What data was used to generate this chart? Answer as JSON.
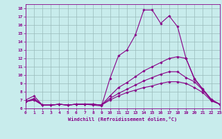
{
  "xlabel": "Windchill (Refroidissement éolien,°C)",
  "bg_color": "#c8ecec",
  "line_color": "#880088",
  "grid_color": "#99bbbb",
  "xlim": [
    0,
    23
  ],
  "ylim": [
    6,
    18.5
  ],
  "xticks": [
    0,
    1,
    2,
    3,
    4,
    5,
    6,
    7,
    8,
    9,
    10,
    11,
    12,
    13,
    14,
    15,
    16,
    17,
    18,
    19,
    20,
    21,
    22,
    23
  ],
  "yticks": [
    6,
    7,
    8,
    9,
    10,
    11,
    12,
    13,
    14,
    15,
    16,
    17,
    18
  ],
  "lines": [
    [
      7.0,
      7.5,
      6.4,
      6.4,
      6.5,
      6.4,
      6.5,
      6.5,
      6.4,
      6.3,
      9.6,
      12.3,
      13.0,
      14.8,
      17.8,
      17.8,
      16.2,
      17.1,
      15.8,
      12.0,
      9.6,
      8.3,
      7.0,
      6.5
    ],
    [
      6.8,
      7.1,
      6.4,
      6.4,
      6.5,
      6.4,
      6.5,
      6.5,
      6.5,
      6.4,
      7.5,
      8.5,
      9.1,
      9.8,
      10.5,
      11.0,
      11.5,
      12.0,
      12.2,
      12.0,
      9.5,
      8.3,
      7.1,
      6.5
    ],
    [
      6.8,
      7.0,
      6.4,
      6.4,
      6.5,
      6.4,
      6.5,
      6.5,
      6.5,
      6.4,
      7.2,
      7.8,
      8.3,
      8.8,
      9.3,
      9.7,
      10.1,
      10.4,
      10.4,
      9.7,
      9.2,
      8.2,
      7.0,
      6.5
    ],
    [
      6.8,
      7.2,
      6.4,
      6.4,
      6.5,
      6.4,
      6.5,
      6.5,
      6.5,
      6.4,
      7.0,
      7.5,
      7.9,
      8.2,
      8.5,
      8.7,
      9.0,
      9.2,
      9.2,
      9.0,
      8.5,
      7.9,
      6.9,
      6.5
    ]
  ]
}
